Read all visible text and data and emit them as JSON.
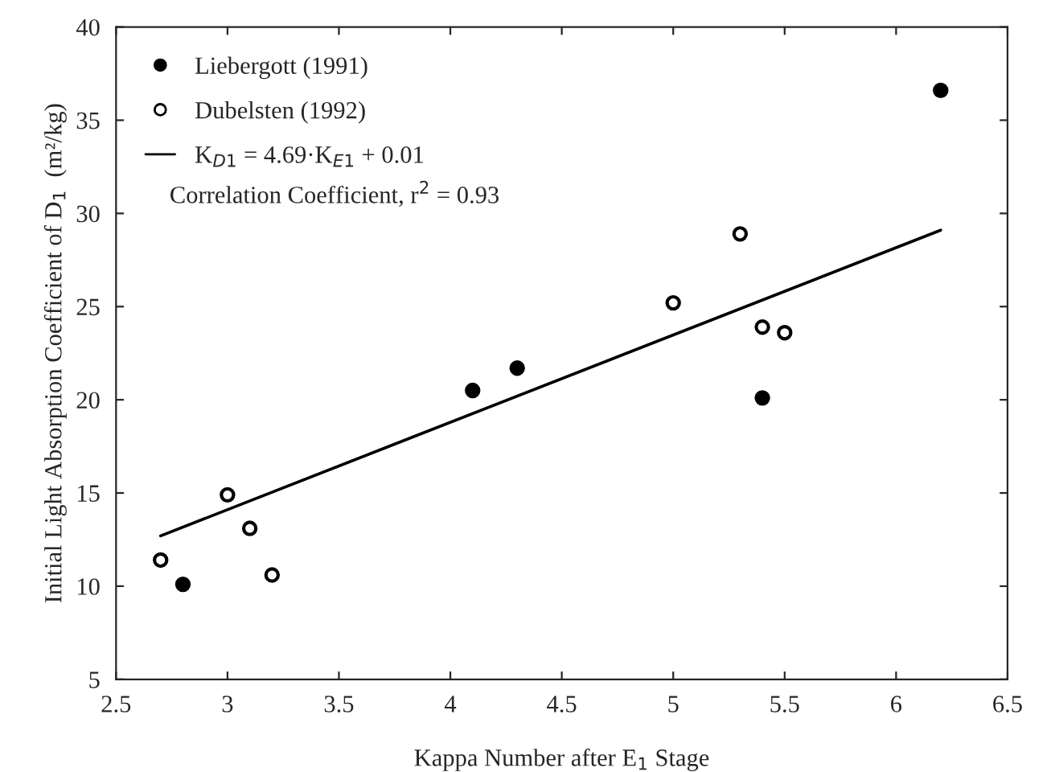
{
  "chart_data": {
    "type": "scatter",
    "xlabel": "Kappa Number after E$_{1}$ Stage",
    "ylabel": "Initial Light Absorption Coefficient of D$_{1}$  (m²/kg)",
    "series": [
      {
        "name": "Liebergott (1991)",
        "color": "#000000",
        "marker": "circle",
        "x": [
          2.8,
          4.1,
          4.3,
          5.4,
          6.2
        ],
        "values": [
          10.1,
          20.5,
          21.7,
          20.1,
          36.6
        ]
      },
      {
        "name": "Dubelsten (1992)",
        "color": "#ffffff",
        "marker": "circle",
        "x": [
          2.7,
          3.0,
          3.1,
          3.2,
          5.0,
          5.3,
          5.4,
          5.5
        ],
        "values": [
          11.4,
          14.9,
          13.1,
          10.6,
          25.2,
          28.9,
          23.9,
          23.6
        ]
      },
      {
        "name": "K$_{D1}$ = 4.69·K$_{E1}$ + 0.01",
        "type": "line",
        "color": "#000000",
        "line_style": "solid",
        "marker": "none",
        "x": [
          2.7,
          6.2
        ],
        "values": [
          12.7,
          29.1
        ]
      }
    ],
    "annotations": [
      "Correlation Coefficient, r$^{2}$ = 0.93"
    ],
    "xlim": [
      2.5,
      6.5
    ],
    "xticks": [
      2.5,
      3,
      3.5,
      4,
      4.5,
      5,
      5.5,
      6,
      6.5
    ],
    "ylim": [
      5,
      40
    ],
    "yticks": [
      5,
      10,
      15,
      20,
      25,
      30,
      35,
      40
    ],
    "grid": false,
    "legend": "top left"
  }
}
